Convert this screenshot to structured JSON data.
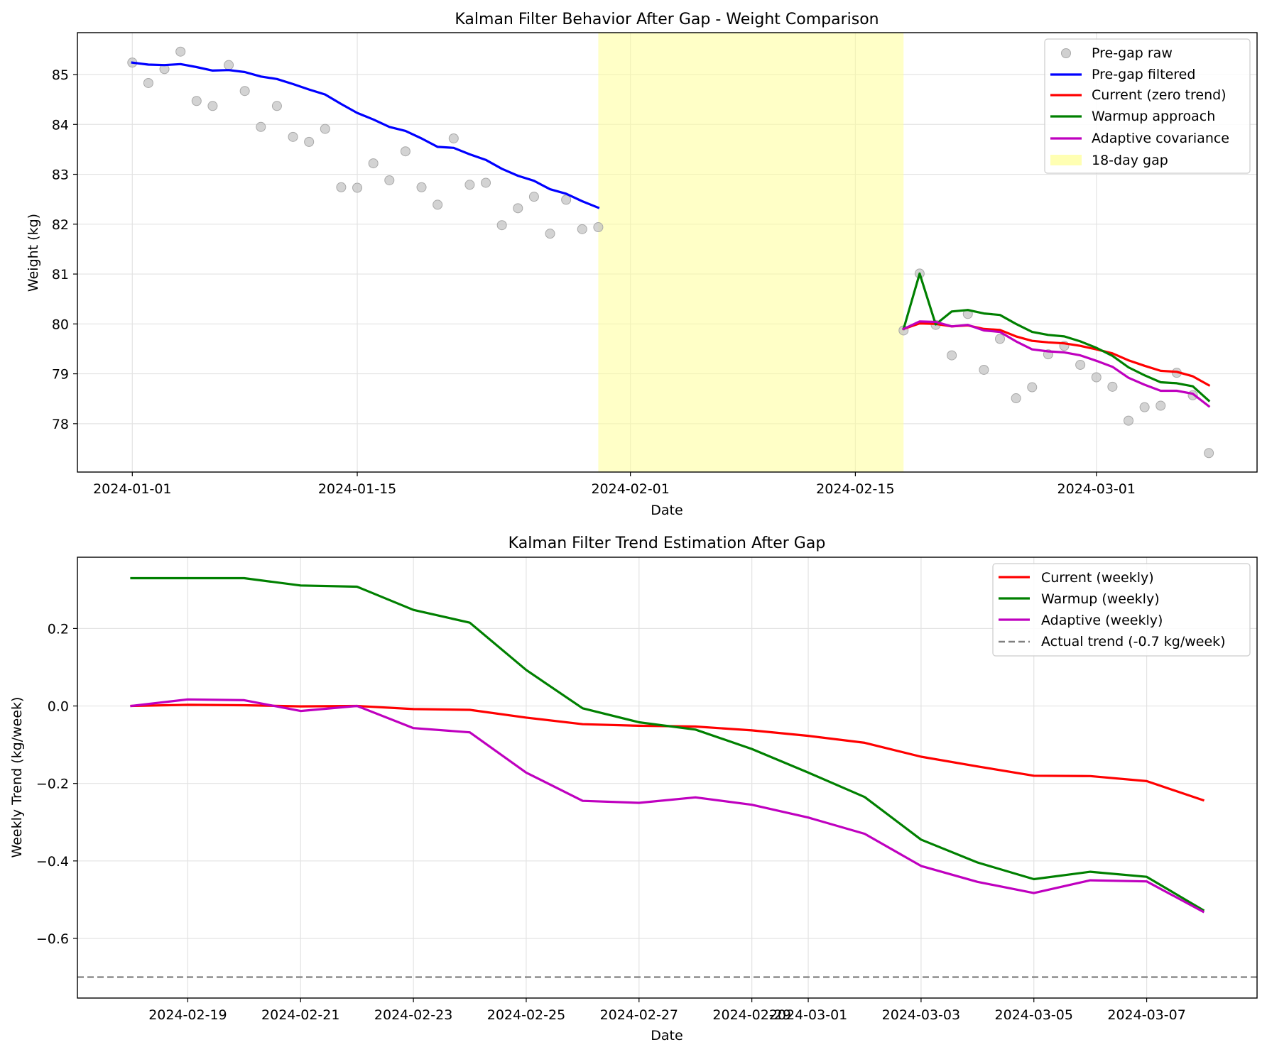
{
  "chart_data": [
    {
      "type": "line",
      "title": "Kalman Filter Behavior After Gap - Weight Comparison",
      "xlabel": "Date",
      "ylabel": "Weight (kg)",
      "x_axis": "date",
      "xlim": [
        "2023-12-28T14:00",
        "2024-03-11T00:00"
      ],
      "ylim": [
        77.03,
        85.84
      ],
      "xticks": [
        "2024-01-01",
        "2024-01-15",
        "2024-02-01",
        "2024-02-15",
        "2024-03-01"
      ],
      "yticks": [
        78,
        79,
        80,
        81,
        82,
        83,
        84,
        85
      ],
      "grid": true,
      "legend_position": "top-right",
      "shaded_region": {
        "name": "18-day gap",
        "x_start": "2024-01-30",
        "x_end": "2024-02-18",
        "color": "#ffff99"
      },
      "scatter": {
        "name": "Pre-gap raw",
        "color": "#c0c0c0",
        "points": [
          [
            "2024-01-01",
            85.24
          ],
          [
            "2024-01-02",
            84.83
          ],
          [
            "2024-01-03",
            85.11
          ],
          [
            "2024-01-04",
            85.46
          ],
          [
            "2024-01-05",
            84.47
          ],
          [
            "2024-01-06",
            84.37
          ],
          [
            "2024-01-07",
            85.19
          ],
          [
            "2024-01-08",
            84.67
          ],
          [
            "2024-01-09",
            83.95
          ],
          [
            "2024-01-10",
            84.37
          ],
          [
            "2024-01-11",
            83.75
          ],
          [
            "2024-01-12",
            83.65
          ],
          [
            "2024-01-13",
            83.91
          ],
          [
            "2024-01-14",
            82.74
          ],
          [
            "2024-01-15",
            82.73
          ],
          [
            "2024-01-16",
            83.22
          ],
          [
            "2024-01-17",
            82.88
          ],
          [
            "2024-01-18",
            83.46
          ],
          [
            "2024-01-19",
            82.74
          ],
          [
            "2024-01-20",
            82.39
          ],
          [
            "2024-01-21",
            83.72
          ],
          [
            "2024-01-22",
            82.79
          ],
          [
            "2024-01-23",
            82.83
          ],
          [
            "2024-01-24",
            81.98
          ],
          [
            "2024-01-25",
            82.32
          ],
          [
            "2024-01-26",
            82.55
          ],
          [
            "2024-01-27",
            81.81
          ],
          [
            "2024-01-28",
            82.49
          ],
          [
            "2024-01-29",
            81.9
          ],
          [
            "2024-01-30",
            81.94
          ],
          [
            "2024-02-18",
            79.87
          ],
          [
            "2024-02-19",
            81.01
          ],
          [
            "2024-02-20",
            79.98
          ],
          [
            "2024-02-21",
            79.37
          ],
          [
            "2024-02-22",
            80.2
          ],
          [
            "2024-02-23",
            79.08
          ],
          [
            "2024-02-24",
            79.7
          ],
          [
            "2024-02-25",
            78.51
          ],
          [
            "2024-02-26",
            78.73
          ],
          [
            "2024-02-27",
            79.39
          ],
          [
            "2024-02-28",
            79.56
          ],
          [
            "2024-02-29",
            79.18
          ],
          [
            "2024-03-01",
            78.93
          ],
          [
            "2024-03-02",
            78.74
          ],
          [
            "2024-03-03",
            78.06
          ],
          [
            "2024-03-04",
            78.33
          ],
          [
            "2024-03-05",
            78.36
          ],
          [
            "2024-03-06",
            79.02
          ],
          [
            "2024-03-07",
            78.57
          ],
          [
            "2024-03-08",
            77.41
          ]
        ]
      },
      "series": [
        {
          "name": "Pre-gap filtered",
          "color": "#0000ff",
          "x": [
            "2024-01-01",
            "2024-01-02",
            "2024-01-03",
            "2024-01-04",
            "2024-01-05",
            "2024-01-06",
            "2024-01-07",
            "2024-01-08",
            "2024-01-09",
            "2024-01-10",
            "2024-01-11",
            "2024-01-12",
            "2024-01-13",
            "2024-01-14",
            "2024-01-15",
            "2024-01-16",
            "2024-01-17",
            "2024-01-18",
            "2024-01-19",
            "2024-01-20",
            "2024-01-21",
            "2024-01-22",
            "2024-01-23",
            "2024-01-24",
            "2024-01-25",
            "2024-01-26",
            "2024-01-27",
            "2024-01-28",
            "2024-01-29",
            "2024-01-30"
          ],
          "y": [
            85.24,
            85.2,
            85.19,
            85.21,
            85.15,
            85.08,
            85.09,
            85.05,
            84.96,
            84.91,
            84.81,
            84.7,
            84.6,
            84.41,
            84.23,
            84.1,
            83.95,
            83.87,
            83.72,
            83.55,
            83.53,
            83.4,
            83.29,
            83.11,
            82.97,
            82.87,
            82.7,
            82.61,
            82.46,
            82.33
          ]
        },
        {
          "name": "Current (zero trend)",
          "color": "#ff0000",
          "x": [
            "2024-02-18",
            "2024-02-19",
            "2024-02-20",
            "2024-02-21",
            "2024-02-22",
            "2024-02-23",
            "2024-02-24",
            "2024-02-25",
            "2024-02-26",
            "2024-02-27",
            "2024-02-28",
            "2024-02-29",
            "2024-03-01",
            "2024-03-02",
            "2024-03-03",
            "2024-03-04",
            "2024-03-05",
            "2024-03-06",
            "2024-03-07",
            "2024-03-08"
          ],
          "y": [
            79.9,
            80.01,
            80.0,
            79.95,
            79.97,
            79.9,
            79.88,
            79.75,
            79.66,
            79.63,
            79.61,
            79.56,
            79.49,
            79.41,
            79.27,
            79.16,
            79.06,
            79.04,
            78.95,
            78.77
          ]
        },
        {
          "name": "Warmup approach",
          "color": "#008000",
          "x": [
            "2024-02-18",
            "2024-02-19",
            "2024-02-20",
            "2024-02-21",
            "2024-02-22",
            "2024-02-23",
            "2024-02-24",
            "2024-02-25",
            "2024-02-26",
            "2024-02-27",
            "2024-02-28",
            "2024-02-29",
            "2024-03-01",
            "2024-03-02",
            "2024-03-03",
            "2024-03-04",
            "2024-03-05",
            "2024-03-06",
            "2024-03-07",
            "2024-03-08"
          ],
          "y": [
            79.9,
            81.01,
            79.99,
            80.25,
            80.28,
            80.21,
            80.18,
            80.0,
            79.84,
            79.78,
            79.75,
            79.65,
            79.52,
            79.36,
            79.13,
            78.97,
            78.83,
            78.81,
            78.75,
            78.46
          ]
        },
        {
          "name": "Adaptive covariance",
          "color": "#bf00bf",
          "x": [
            "2024-02-18",
            "2024-02-19",
            "2024-02-20",
            "2024-02-21",
            "2024-02-22",
            "2024-02-23",
            "2024-02-24",
            "2024-02-25",
            "2024-02-26",
            "2024-02-27",
            "2024-02-28",
            "2024-02-29",
            "2024-03-01",
            "2024-03-02",
            "2024-03-03",
            "2024-03-04",
            "2024-03-05",
            "2024-03-06",
            "2024-03-07",
            "2024-03-08"
          ],
          "y": [
            79.9,
            80.05,
            80.04,
            79.95,
            79.98,
            79.87,
            79.84,
            79.65,
            79.49,
            79.45,
            79.43,
            79.37,
            79.26,
            79.14,
            78.92,
            78.78,
            78.66,
            78.66,
            78.6,
            78.35
          ]
        }
      ]
    },
    {
      "type": "line",
      "title": "Kalman Filter Trend Estimation After Gap",
      "xlabel": "Date",
      "ylabel": "Weekly Trend (kg/week)",
      "x_axis": "date",
      "xlim": [
        "2024-02-17T01:02",
        "2024-03-08T22:58"
      ],
      "ylim": [
        -0.754,
        0.384
      ],
      "xticks": [
        "2024-02-19",
        "2024-02-21",
        "2024-02-23",
        "2024-02-25",
        "2024-02-27",
        "2024-02-29",
        "2024-03-01",
        "2024-03-03",
        "2024-03-05",
        "2024-03-07"
      ],
      "yticks": [
        -0.6,
        -0.4,
        -0.2,
        0.0,
        0.2
      ],
      "ytick_labels": [
        "−0.6",
        "−0.4",
        "−0.2",
        "0.0",
        "0.2"
      ],
      "grid": true,
      "legend_position": "top-right",
      "reference_line": {
        "name": "Actual trend (-0.7 kg/week)",
        "y": -0.7,
        "color": "#808080",
        "style": "dashed"
      },
      "series": [
        {
          "name": "Current (weekly)",
          "color": "#ff0000",
          "x": [
            "2024-02-18",
            "2024-02-19",
            "2024-02-20",
            "2024-02-21",
            "2024-02-22",
            "2024-02-23",
            "2024-02-24",
            "2024-02-25",
            "2024-02-26",
            "2024-02-27",
            "2024-02-28",
            "2024-02-29",
            "2024-03-01",
            "2024-03-02",
            "2024-03-03",
            "2024-03-04",
            "2024-03-05",
            "2024-03-06",
            "2024-03-07",
            "2024-03-08"
          ],
          "y": [
            0.0,
            0.003,
            0.002,
            -0.001,
            0.0,
            -0.008,
            -0.01,
            -0.03,
            -0.047,
            -0.051,
            -0.053,
            -0.063,
            -0.077,
            -0.095,
            -0.131,
            -0.156,
            -0.18,
            -0.181,
            -0.194,
            -0.243
          ]
        },
        {
          "name": "Warmup (weekly)",
          "color": "#008000",
          "x": [
            "2024-02-18",
            "2024-02-19",
            "2024-02-20",
            "2024-02-21",
            "2024-02-22",
            "2024-02-23",
            "2024-02-24",
            "2024-02-25",
            "2024-02-26",
            "2024-02-27",
            "2024-02-28",
            "2024-02-29",
            "2024-03-01",
            "2024-03-02",
            "2024-03-03",
            "2024-03-04",
            "2024-03-05",
            "2024-03-06",
            "2024-03-07",
            "2024-03-08"
          ],
          "y": [
            0.33,
            0.33,
            0.33,
            0.311,
            0.308,
            0.248,
            0.215,
            0.093,
            -0.006,
            -0.042,
            -0.061,
            -0.111,
            -0.172,
            -0.235,
            -0.345,
            -0.404,
            -0.447,
            -0.428,
            -0.441,
            -0.527
          ]
        },
        {
          "name": "Adaptive (weekly)",
          "color": "#bf00bf",
          "x": [
            "2024-02-18",
            "2024-02-19",
            "2024-02-20",
            "2024-02-21",
            "2024-02-22",
            "2024-02-23",
            "2024-02-24",
            "2024-02-25",
            "2024-02-26",
            "2024-02-27",
            "2024-02-28",
            "2024-02-29",
            "2024-03-01",
            "2024-03-02",
            "2024-03-03",
            "2024-03-04",
            "2024-03-05",
            "2024-03-06",
            "2024-03-07",
            "2024-03-08"
          ],
          "y": [
            0.0,
            0.017,
            0.015,
            -0.013,
            0.0,
            -0.057,
            -0.068,
            -0.172,
            -0.245,
            -0.25,
            -0.236,
            -0.255,
            -0.288,
            -0.33,
            -0.413,
            -0.454,
            -0.483,
            -0.45,
            -0.453,
            -0.531
          ]
        }
      ]
    }
  ]
}
